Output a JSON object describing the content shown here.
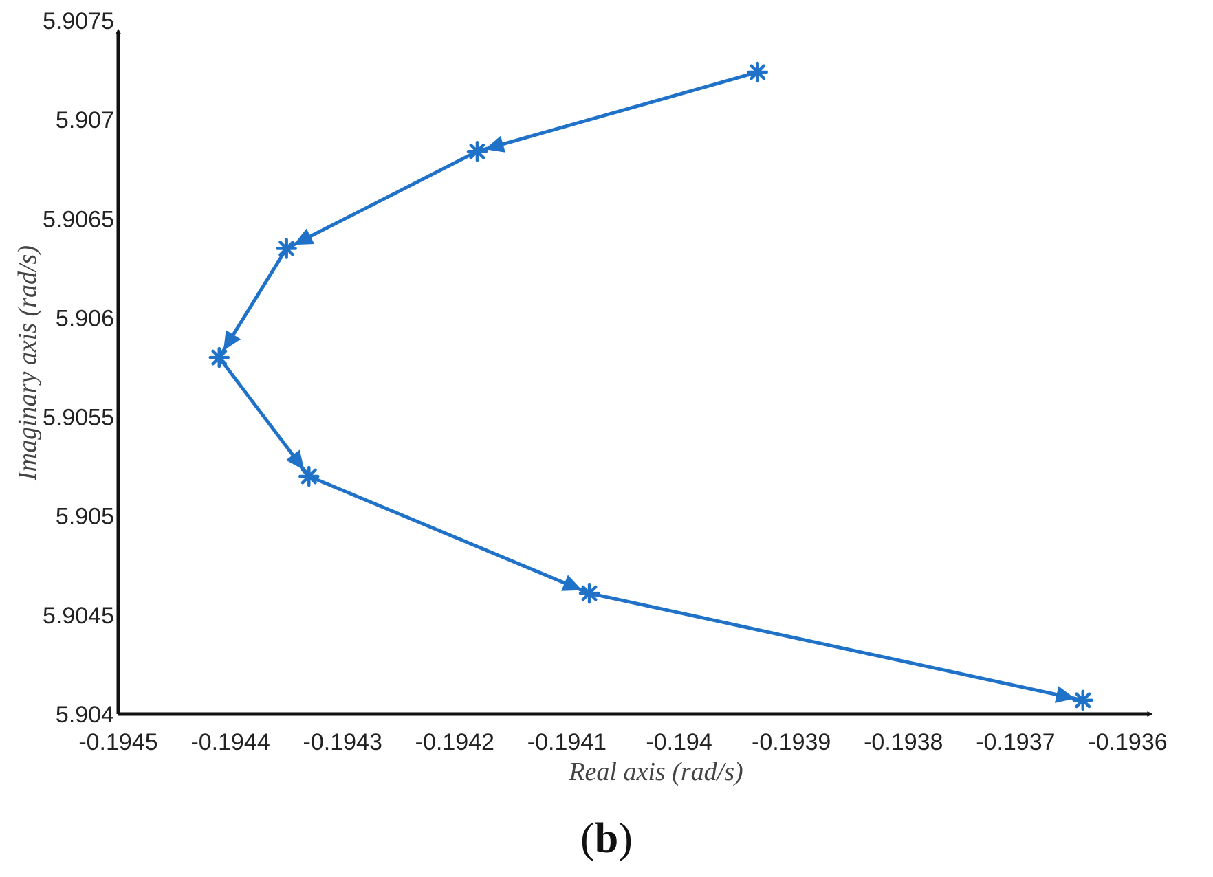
{
  "chart_data": {
    "type": "line",
    "xlabel": "Real axis (rad/s)",
    "ylabel": "Imaginary axis (rad/s)",
    "xlim": [
      -0.1945,
      -0.1936
    ],
    "ylim": [
      5.904,
      5.9075
    ],
    "x_ticks": [
      "-0.1945",
      "-0.1944",
      "-0.1943",
      "-0.1942",
      "-0.1941",
      "-0.194",
      "-0.1939",
      "-0.1938",
      "-0.1937",
      "-0.1936"
    ],
    "y_ticks": [
      "5.904",
      "5.9045",
      "5.905",
      "5.9055",
      "5.906",
      "5.9065",
      "5.907",
      "5.9075"
    ],
    "x_tick_values": [
      -0.1945,
      -0.1944,
      -0.1943,
      -0.1942,
      -0.1941,
      -0.194,
      -0.1939,
      -0.1938,
      -0.1937,
      -0.1936
    ],
    "y_tick_values": [
      5.904,
      5.9045,
      5.905,
      5.9055,
      5.906,
      5.9065,
      5.907,
      5.9075
    ],
    "series": [
      {
        "color": "#1f72c8",
        "marker": "asterisk",
        "arrows": true,
        "x": [
          -0.19393,
          -0.19418,
          -0.19435,
          -0.19441,
          -0.19433,
          -0.19408,
          -0.19364
        ],
        "y": [
          5.90724,
          5.90684,
          5.90635,
          5.9058,
          5.9052,
          5.90461,
          5.90407
        ]
      }
    ],
    "grid": false,
    "legend": "none"
  },
  "panel_label": {
    "open": "(",
    "letter": "b",
    "close": ")"
  }
}
